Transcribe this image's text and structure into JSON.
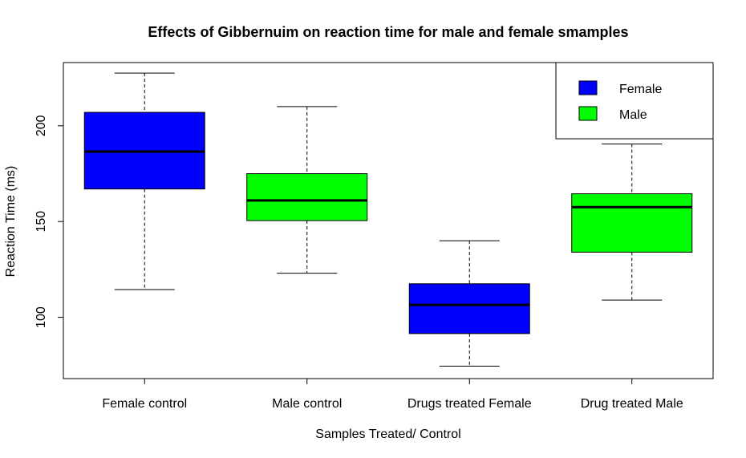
{
  "chart_data": {
    "type": "boxplot",
    "title": "Effects of Gibbernuim on reaction time for male and female smamples",
    "xlabel": "Samples Treated/ Control",
    "ylabel": "Reaction Time (ms)",
    "ylim": [
      68,
      233
    ],
    "yticks": [
      100,
      150,
      200
    ],
    "categories": [
      "Female control",
      "Male control",
      "Drugs treated Female",
      "Drug treated Male"
    ],
    "boxes": [
      {
        "category": "Female control",
        "group": "Female",
        "min": 114.5,
        "q1": 167,
        "median": 186.5,
        "q3": 207,
        "max": 227.5,
        "color": "#0000ff"
      },
      {
        "category": "Male control",
        "group": "Male",
        "min": 123,
        "q1": 150.5,
        "median": 161,
        "q3": 175,
        "max": 210,
        "color": "#00ff00"
      },
      {
        "category": "Drugs treated Female",
        "group": "Female",
        "min": 74.5,
        "q1": 91.5,
        "median": 106.5,
        "q3": 117.5,
        "max": 140,
        "color": "#0000ff"
      },
      {
        "category": "Drug treated Male",
        "group": "Male",
        "min": 109,
        "q1": 134,
        "median": 157.5,
        "q3": 164.5,
        "max": 190.5,
        "color": "#00ff00"
      }
    ],
    "legend": {
      "position": "top-right",
      "entries": [
        {
          "label": "Female",
          "color": "#0000ff"
        },
        {
          "label": "Male",
          "color": "#00ff00"
        }
      ]
    },
    "grid": false
  }
}
